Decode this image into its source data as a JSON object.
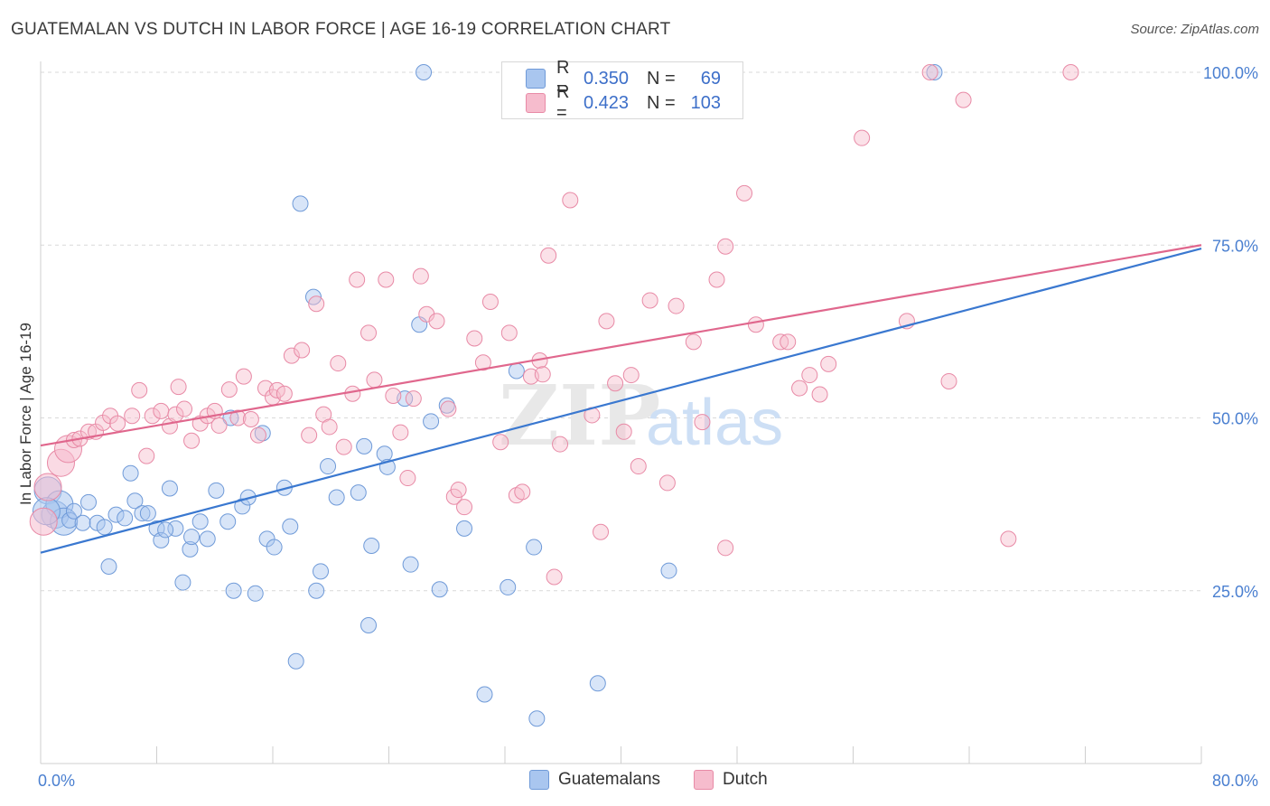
{
  "title": "GUATEMALAN VS DUTCH IN LABOR FORCE | AGE 16-19 CORRELATION CHART",
  "source": "Source: ZipAtlas.com",
  "watermark": {
    "zip": "ZIP",
    "atlas": "atlas"
  },
  "legend": {
    "r_label": "R =",
    "n_label": "N =",
    "rows": [
      {
        "name": "Guatemalans",
        "r": "0.350",
        "n": "69",
        "color": "#a9c6ef",
        "stroke": "#6f9ad8"
      },
      {
        "name": "Dutch",
        "r": "0.423",
        "n": "103",
        "color": "#f6bccd",
        "stroke": "#e88aa6"
      }
    ]
  },
  "chart_data": {
    "type": "scatter",
    "title": "GUATEMALAN VS DUTCH IN LABOR FORCE | AGE 16-19 CORRELATION CHART",
    "xlabel": "",
    "ylabel": "In Labor Force | Age 16-19",
    "xlim": [
      0,
      80
    ],
    "ylim": [
      0,
      100
    ],
    "x_tick_labels": [
      "0.0%",
      "80.0%"
    ],
    "y_ticks": [
      25,
      50,
      75,
      100
    ],
    "y_tick_labels": [
      "25.0%",
      "50.0%",
      "75.0%",
      "100.0%"
    ],
    "x_minor_ticks": [
      0,
      8,
      16,
      24,
      32,
      40,
      48,
      56,
      64,
      72,
      80
    ],
    "series": [
      {
        "name": "Guatemalans",
        "color": "#a9c6ef",
        "stroke": "#6f9ad8",
        "trend_color": "#3a78d0",
        "trend": [
          [
            0,
            30.5
          ],
          [
            80,
            74.5
          ]
        ],
        "points": [
          [
            0.5,
            39.5
          ],
          [
            1.0,
            36.0
          ],
          [
            1.3,
            37.5
          ],
          [
            1.6,
            35.0
          ],
          [
            2.0,
            35.2
          ],
          [
            2.3,
            36.5
          ],
          [
            2.9,
            34.8
          ],
          [
            3.3,
            37.8
          ],
          [
            3.9,
            34.8
          ],
          [
            4.4,
            34.2
          ],
          [
            4.7,
            28.5
          ],
          [
            5.2,
            36.0
          ],
          [
            5.8,
            35.5
          ],
          [
            6.2,
            42.0
          ],
          [
            6.5,
            38.0
          ],
          [
            7.0,
            36.2
          ],
          [
            7.4,
            36.2
          ],
          [
            8.0,
            34.0
          ],
          [
            8.3,
            32.3
          ],
          [
            8.9,
            39.8
          ],
          [
            9.3,
            34.0
          ],
          [
            9.8,
            26.2
          ],
          [
            10.3,
            31.0
          ],
          [
            10.4,
            32.8
          ],
          [
            11.0,
            35.0
          ],
          [
            11.5,
            32.5
          ],
          [
            12.1,
            39.5
          ],
          [
            12.9,
            35.0
          ],
          [
            13.1,
            50.0
          ],
          [
            13.3,
            25.0
          ],
          [
            13.9,
            37.2
          ],
          [
            14.3,
            38.5
          ],
          [
            14.8,
            24.6
          ],
          [
            15.3,
            47.8
          ],
          [
            15.6,
            32.5
          ],
          [
            16.1,
            31.3
          ],
          [
            16.8,
            39.9
          ],
          [
            17.2,
            34.3
          ],
          [
            17.6,
            14.8
          ],
          [
            17.9,
            81.0
          ],
          [
            18.8,
            67.5
          ],
          [
            19.0,
            25.0
          ],
          [
            19.3,
            27.8
          ],
          [
            19.8,
            43.0
          ],
          [
            20.4,
            38.5
          ],
          [
            21.9,
            39.2
          ],
          [
            22.3,
            45.9
          ],
          [
            22.6,
            20.0
          ],
          [
            22.8,
            31.5
          ],
          [
            23.7,
            44.8
          ],
          [
            23.9,
            42.9
          ],
          [
            25.1,
            52.8
          ],
          [
            25.5,
            28.8
          ],
          [
            26.1,
            63.5
          ],
          [
            26.4,
            100.0
          ],
          [
            26.9,
            49.5
          ],
          [
            27.5,
            25.2
          ],
          [
            28.0,
            51.8
          ],
          [
            29.2,
            34.0
          ],
          [
            30.6,
            10.0
          ],
          [
            32.2,
            25.5
          ],
          [
            32.8,
            56.8
          ],
          [
            34.0,
            31.3
          ],
          [
            34.2,
            6.5
          ],
          [
            38.4,
            11.6
          ],
          [
            43.3,
            27.9
          ],
          [
            61.6,
            100.0
          ],
          [
            0.4,
            36.5
          ],
          [
            8.6,
            33.8
          ]
        ]
      },
      {
        "name": "Dutch",
        "color": "#f6bccd",
        "stroke": "#e88aa6",
        "trend_color": "#e0678d",
        "trend": [
          [
            0,
            46.0
          ],
          [
            80,
            75.0
          ]
        ],
        "points": [
          [
            0.2,
            35.0
          ],
          [
            0.5,
            40.0
          ],
          [
            1.4,
            43.5
          ],
          [
            1.9,
            45.5
          ],
          [
            2.3,
            46.8
          ],
          [
            2.7,
            47.0
          ],
          [
            3.3,
            48.0
          ],
          [
            3.8,
            48.0
          ],
          [
            4.3,
            49.3
          ],
          [
            4.8,
            50.3
          ],
          [
            5.3,
            49.2
          ],
          [
            6.3,
            50.3
          ],
          [
            6.8,
            54.0
          ],
          [
            7.3,
            44.5
          ],
          [
            7.7,
            50.3
          ],
          [
            8.3,
            51.0
          ],
          [
            8.9,
            48.8
          ],
          [
            9.3,
            50.5
          ],
          [
            9.5,
            54.5
          ],
          [
            9.9,
            51.3
          ],
          [
            10.4,
            46.7
          ],
          [
            11.0,
            49.2
          ],
          [
            11.5,
            50.3
          ],
          [
            12.0,
            51.0
          ],
          [
            12.3,
            48.9
          ],
          [
            13.0,
            54.1
          ],
          [
            13.6,
            50.0
          ],
          [
            14.0,
            56.0
          ],
          [
            14.5,
            49.8
          ],
          [
            15.0,
            47.5
          ],
          [
            15.5,
            54.3
          ],
          [
            16.0,
            53.0
          ],
          [
            16.3,
            54.0
          ],
          [
            16.8,
            53.5
          ],
          [
            17.3,
            59.0
          ],
          [
            18.0,
            59.8
          ],
          [
            18.5,
            47.5
          ],
          [
            19.0,
            66.5
          ],
          [
            19.5,
            50.5
          ],
          [
            19.9,
            48.7
          ],
          [
            20.5,
            57.9
          ],
          [
            20.9,
            45.8
          ],
          [
            21.5,
            53.5
          ],
          [
            21.8,
            70.0
          ],
          [
            22.6,
            62.3
          ],
          [
            23.0,
            55.5
          ],
          [
            23.8,
            70.0
          ],
          [
            24.3,
            53.2
          ],
          [
            24.8,
            47.9
          ],
          [
            25.3,
            41.3
          ],
          [
            25.7,
            52.8
          ],
          [
            26.2,
            70.5
          ],
          [
            26.6,
            65.0
          ],
          [
            27.3,
            64.0
          ],
          [
            28.1,
            51.3
          ],
          [
            28.5,
            38.6
          ],
          [
            28.8,
            39.6
          ],
          [
            29.2,
            37.1
          ],
          [
            29.9,
            61.5
          ],
          [
            30.5,
            58.0
          ],
          [
            31.0,
            66.8
          ],
          [
            31.7,
            46.5
          ],
          [
            32.3,
            62.3
          ],
          [
            32.8,
            38.8
          ],
          [
            33.2,
            39.3
          ],
          [
            33.8,
            56.0
          ],
          [
            34.0,
            100.0
          ],
          [
            34.4,
            58.3
          ],
          [
            34.6,
            56.3
          ],
          [
            35.0,
            73.5
          ],
          [
            35.4,
            27.0
          ],
          [
            35.8,
            46.2
          ],
          [
            36.5,
            81.5
          ],
          [
            38.0,
            50.4
          ],
          [
            38.6,
            33.5
          ],
          [
            39.0,
            64.0
          ],
          [
            39.6,
            55.0
          ],
          [
            40.2,
            48.0
          ],
          [
            40.7,
            56.2
          ],
          [
            41.2,
            43.0
          ],
          [
            42.0,
            67.0
          ],
          [
            43.2,
            40.6
          ],
          [
            43.8,
            66.2
          ],
          [
            45.0,
            61.0
          ],
          [
            45.6,
            49.4
          ],
          [
            46.6,
            70.0
          ],
          [
            47.2,
            74.8
          ],
          [
            47.2,
            31.2
          ],
          [
            48.5,
            82.5
          ],
          [
            49.3,
            63.5
          ],
          [
            51.0,
            61.0
          ],
          [
            51.5,
            61.0
          ],
          [
            52.3,
            54.3
          ],
          [
            53.0,
            56.2
          ],
          [
            53.7,
            53.4
          ],
          [
            54.3,
            57.8
          ],
          [
            56.6,
            90.5
          ],
          [
            59.7,
            64.0
          ],
          [
            61.3,
            100.0
          ],
          [
            62.6,
            55.3
          ],
          [
            63.6,
            96.0
          ],
          [
            66.7,
            32.5
          ],
          [
            71.0,
            100.0
          ]
        ]
      }
    ]
  }
}
